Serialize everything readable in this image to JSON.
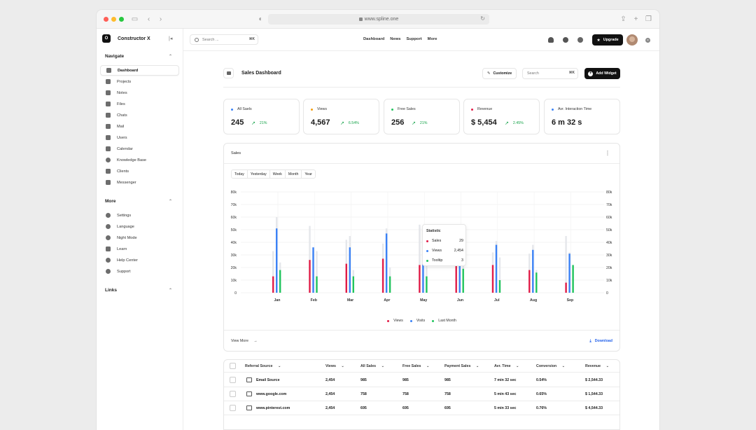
{
  "browser": {
    "url": "www.spline.one"
  },
  "brand": {
    "name": "Constructor X",
    "logo_letter": "O"
  },
  "sidebar": {
    "navigate_title": "Navigate",
    "navigate": [
      {
        "label": "Dashboard",
        "icon": "grid-icon",
        "active": true
      },
      {
        "label": "Projects",
        "icon": "projects-icon"
      },
      {
        "label": "Notes",
        "icon": "folder-icon"
      },
      {
        "label": "Files",
        "icon": "cloud-icon"
      },
      {
        "label": "Chats",
        "icon": "chat-icon"
      },
      {
        "label": "Mail",
        "icon": "mail-icon"
      },
      {
        "label": "Users",
        "icon": "users-icon"
      },
      {
        "label": "Calendar",
        "icon": "calendar-icon"
      },
      {
        "label": "Knowledge Base",
        "icon": "info-icon"
      },
      {
        "label": "Clients",
        "icon": "clients-icon"
      },
      {
        "label": "Messenger",
        "icon": "messenger-icon"
      }
    ],
    "more_title": "More",
    "more": [
      {
        "label": "Settings",
        "icon": "gear-icon"
      },
      {
        "label": "Language",
        "icon": "globe-icon"
      },
      {
        "label": "Night Mode",
        "icon": "moon-icon"
      },
      {
        "label": "Learn",
        "icon": "graduation-icon"
      },
      {
        "label": "Help Center",
        "icon": "help-icon"
      },
      {
        "label": "Support",
        "icon": "support-icon"
      }
    ],
    "links_title": "Links"
  },
  "topbar": {
    "search_placeholder": "Search ...",
    "search_kbd": "⌘K",
    "nav": [
      "Dashboard",
      "News",
      "Support",
      "More"
    ],
    "upgrade": "Upgrade"
  },
  "dashboard": {
    "title": "Sales Dashboard",
    "customize": "Customize",
    "search_placeholder": "Search",
    "search_kbd": "⌘K",
    "add_widget": "Add Widget"
  },
  "kpis": [
    {
      "label": "All Saels",
      "value": "245",
      "trend": "21%",
      "color": "#3b82f6"
    },
    {
      "label": "Views",
      "value": "4,567",
      "trend": "6.54%",
      "color": "#f59e0b"
    },
    {
      "label": "Free Sales",
      "value": "256",
      "trend": "21%",
      "color": "#22c55e"
    },
    {
      "label": "Revenue",
      "value": "$ 5,454",
      "trend": "2.45%",
      "color": "#e11d48"
    },
    {
      "label": "Avr. Interaction Time",
      "value": "6 m 32 s",
      "trend": "",
      "color": "#3b82f6"
    }
  ],
  "sales_card": {
    "title": "Sales",
    "ranges": [
      "Today",
      "Yesterday",
      "Week",
      "Month",
      "Year"
    ],
    "view_more": "View More",
    "download": "Download",
    "tooltip": {
      "title": "Statistic",
      "rows": [
        {
          "label": "Sales",
          "value": "29",
          "color": "#e11d48"
        },
        {
          "label": "Views",
          "value": "2,454",
          "color": "#3b82f6"
        },
        {
          "label": "Tooltip",
          "value": "3",
          "color": "#22c55e"
        }
      ]
    }
  },
  "chart_data": {
    "type": "bar",
    "categories": [
      "Jan",
      "Feb",
      "Mar",
      "Apr",
      "May",
      "Jun",
      "Jul",
      "Aug",
      "Sep"
    ],
    "y_ticks": [
      "80k",
      "70k",
      "60k",
      "50k",
      "40k",
      "30k",
      "20k",
      "10k",
      "0"
    ],
    "ylim": [
      0,
      80000
    ],
    "series": [
      {
        "name": "Views",
        "color": "#e11d48",
        "values": [
          13000,
          26000,
          23000,
          27000,
          22000,
          30000,
          22000,
          18000,
          8000
        ]
      },
      {
        "name": "Visits",
        "color": "#3b82f6",
        "values": [
          51000,
          36000,
          36000,
          47000,
          46000,
          43000,
          38000,
          34000,
          31000
        ]
      },
      {
        "name": "Last Month",
        "color": "#22c55e",
        "values": [
          18000,
          13000,
          13000,
          13000,
          13000,
          19000,
          10000,
          16000,
          22000
        ]
      },
      {
        "color": "#e5e7eb",
        "values": [
          33000,
          53000,
          42000,
          39000,
          54000,
          30000,
          32000,
          31000,
          45000
        ]
      },
      {
        "color": "#e5e7eb",
        "values": [
          60000,
          33000,
          45000,
          51000,
          41000,
          18000,
          41000,
          38000,
          32000
        ]
      },
      {
        "color": "#e5e7eb",
        "values": [
          24000,
          33000,
          18000,
          20000,
          25000,
          24000,
          28000,
          18000,
          21000
        ]
      }
    ]
  },
  "table": {
    "columns": [
      "Referral Source",
      "Views",
      "All Sales",
      "Free Sales",
      "Payment Sales",
      "Avr. Time",
      "Conversion",
      "Revenue"
    ],
    "rows": [
      {
        "source": "Email Source",
        "icon": "mail-icon",
        "views": "2,454",
        "all": "985",
        "free": "985",
        "paid": "985",
        "time": "7 min 32 sec",
        "conv": "0.54%",
        "rev": "$ 2,544.33"
      },
      {
        "source": "www.google.com",
        "icon": "external-link-icon",
        "views": "2,454",
        "all": "758",
        "free": "758",
        "paid": "758",
        "time": "5 min 43 sec",
        "conv": "0.65%",
        "rev": "$ 1,544.33"
      },
      {
        "source": "www.pinterest.com",
        "icon": "external-link-icon",
        "views": "2,454",
        "all": "695",
        "free": "695",
        "paid": "695",
        "time": "5 min 33 sec",
        "conv": "0.76%",
        "rev": "$ 4,544.33"
      }
    ]
  }
}
